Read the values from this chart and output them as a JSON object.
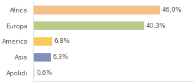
{
  "categories": [
    "Africa",
    "Europa",
    "America",
    "Asia",
    "Apolidi"
  ],
  "values": [
    46.0,
    40.3,
    6.8,
    6.3,
    0.6
  ],
  "labels": [
    "46,0%",
    "40,3%",
    "6,8%",
    "6,3%",
    "0,6%"
  ],
  "bar_colors": [
    "#f2c08a",
    "#b8cc8a",
    "#f5cc55",
    "#8090bb",
    "#e8e8e8"
  ],
  "background_color": "#ffffff",
  "xlim": [
    0,
    58
  ],
  "label_fontsize": 6.5,
  "tick_fontsize": 6.5,
  "bar_height": 0.55
}
